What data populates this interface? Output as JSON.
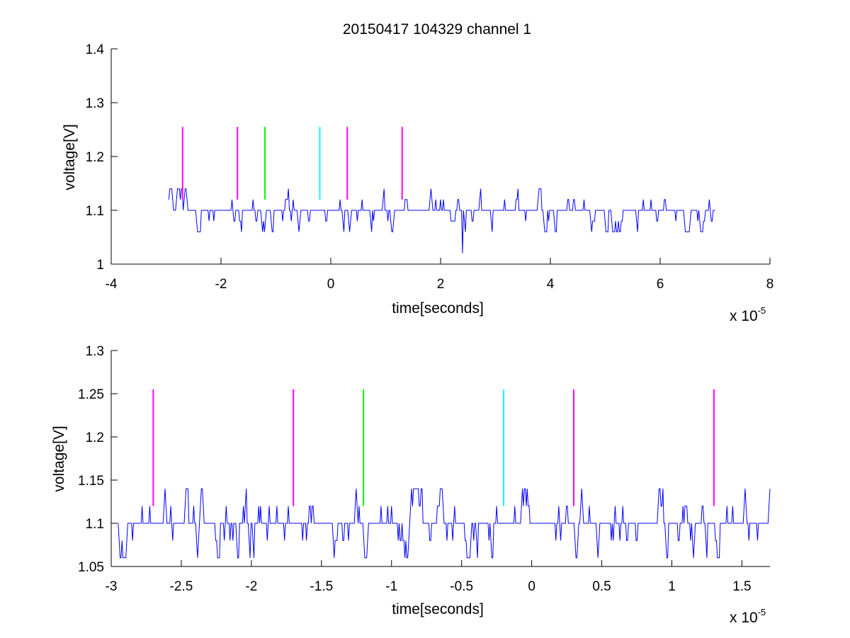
{
  "chart_data": [
    {
      "type": "line",
      "title": "20150417 104329 channel 1",
      "xlabel": "time[seconds]",
      "ylabel": "voltage[V]",
      "x_multiplier_label": "x 10",
      "x_multiplier_exponent": "-5",
      "x_scale": 1e-05,
      "xlim": [
        -4,
        8
      ],
      "ylim": [
        1.0,
        1.4
      ],
      "xticks": [
        "-4",
        "-2",
        "0",
        "2",
        "4",
        "6",
        "8"
      ],
      "xtick_values": [
        -4,
        -2,
        0,
        2,
        4,
        6,
        8
      ],
      "yticks": [
        "1",
        "1.1",
        "1.2",
        "1.3",
        "1.4"
      ],
      "ytick_values": [
        1.0,
        1.1,
        1.2,
        1.3,
        1.4
      ],
      "grid": false,
      "series": [
        {
          "color": "#0000ff",
          "kind": "noisy-signal",
          "x_range": [
            -2.95,
            7.0
          ],
          "levels": [
            1.06,
            1.08,
            1.1,
            1.12,
            1.14
          ],
          "baseline": 1.1,
          "outlier": {
            "x": 2.4,
            "y": 1.02
          }
        }
      ],
      "markers": [
        {
          "x": -2.7,
          "y_range": [
            1.12,
            1.255
          ],
          "color": "#ff00ff"
        },
        {
          "x": -1.7,
          "y_range": [
            1.12,
            1.255
          ],
          "color": "#ff00ff"
        },
        {
          "x": -1.2,
          "y_range": [
            1.12,
            1.255
          ],
          "color": "#00ff00"
        },
        {
          "x": -0.2,
          "y_range": [
            1.12,
            1.255
          ],
          "color": "#00ffff"
        },
        {
          "x": 0.3,
          "y_range": [
            1.12,
            1.255
          ],
          "color": "#ff00ff"
        },
        {
          "x": 1.3,
          "y_range": [
            1.12,
            1.255
          ],
          "color": "#ff00ff"
        }
      ]
    },
    {
      "type": "line",
      "title": "",
      "xlabel": "time[seconds]",
      "ylabel": "voltage[V]",
      "x_multiplier_label": "x 10",
      "x_multiplier_exponent": "-5",
      "x_scale": 1e-05,
      "xlim": [
        -3.0,
        1.7
      ],
      "ylim": [
        1.05,
        1.3
      ],
      "xticks": [
        "-3",
        "-2.5",
        "-2",
        "-1.5",
        "-1",
        "-0.5",
        "0",
        "0.5",
        "1",
        "1.5"
      ],
      "xtick_values": [
        -3,
        -2.5,
        -2,
        -1.5,
        -1,
        -0.5,
        0,
        0.5,
        1,
        1.5
      ],
      "yticks": [
        "1.05",
        "1.1",
        "1.15",
        "1.2",
        "1.25",
        "1.3"
      ],
      "ytick_values": [
        1.05,
        1.1,
        1.15,
        1.2,
        1.25,
        1.3
      ],
      "grid": false,
      "series": [
        {
          "color": "#0000ff",
          "kind": "noisy-signal",
          "x_range": [
            -2.95,
            1.7
          ],
          "levels": [
            1.06,
            1.08,
            1.1,
            1.12,
            1.14
          ],
          "baseline": 1.1
        }
      ],
      "markers": [
        {
          "x": -2.7,
          "y_range": [
            1.12,
            1.255
          ],
          "color": "#ff00ff"
        },
        {
          "x": -1.7,
          "y_range": [
            1.12,
            1.255
          ],
          "color": "#ff00ff"
        },
        {
          "x": -1.2,
          "y_range": [
            1.12,
            1.255
          ],
          "color": "#00ff00"
        },
        {
          "x": -0.2,
          "y_range": [
            1.12,
            1.255
          ],
          "color": "#00ffff"
        },
        {
          "x": 0.3,
          "y_range": [
            1.12,
            1.255
          ],
          "color": "#ff00ff"
        },
        {
          "x": 1.3,
          "y_range": [
            1.12,
            1.255
          ],
          "color": "#ff00ff"
        }
      ]
    }
  ]
}
